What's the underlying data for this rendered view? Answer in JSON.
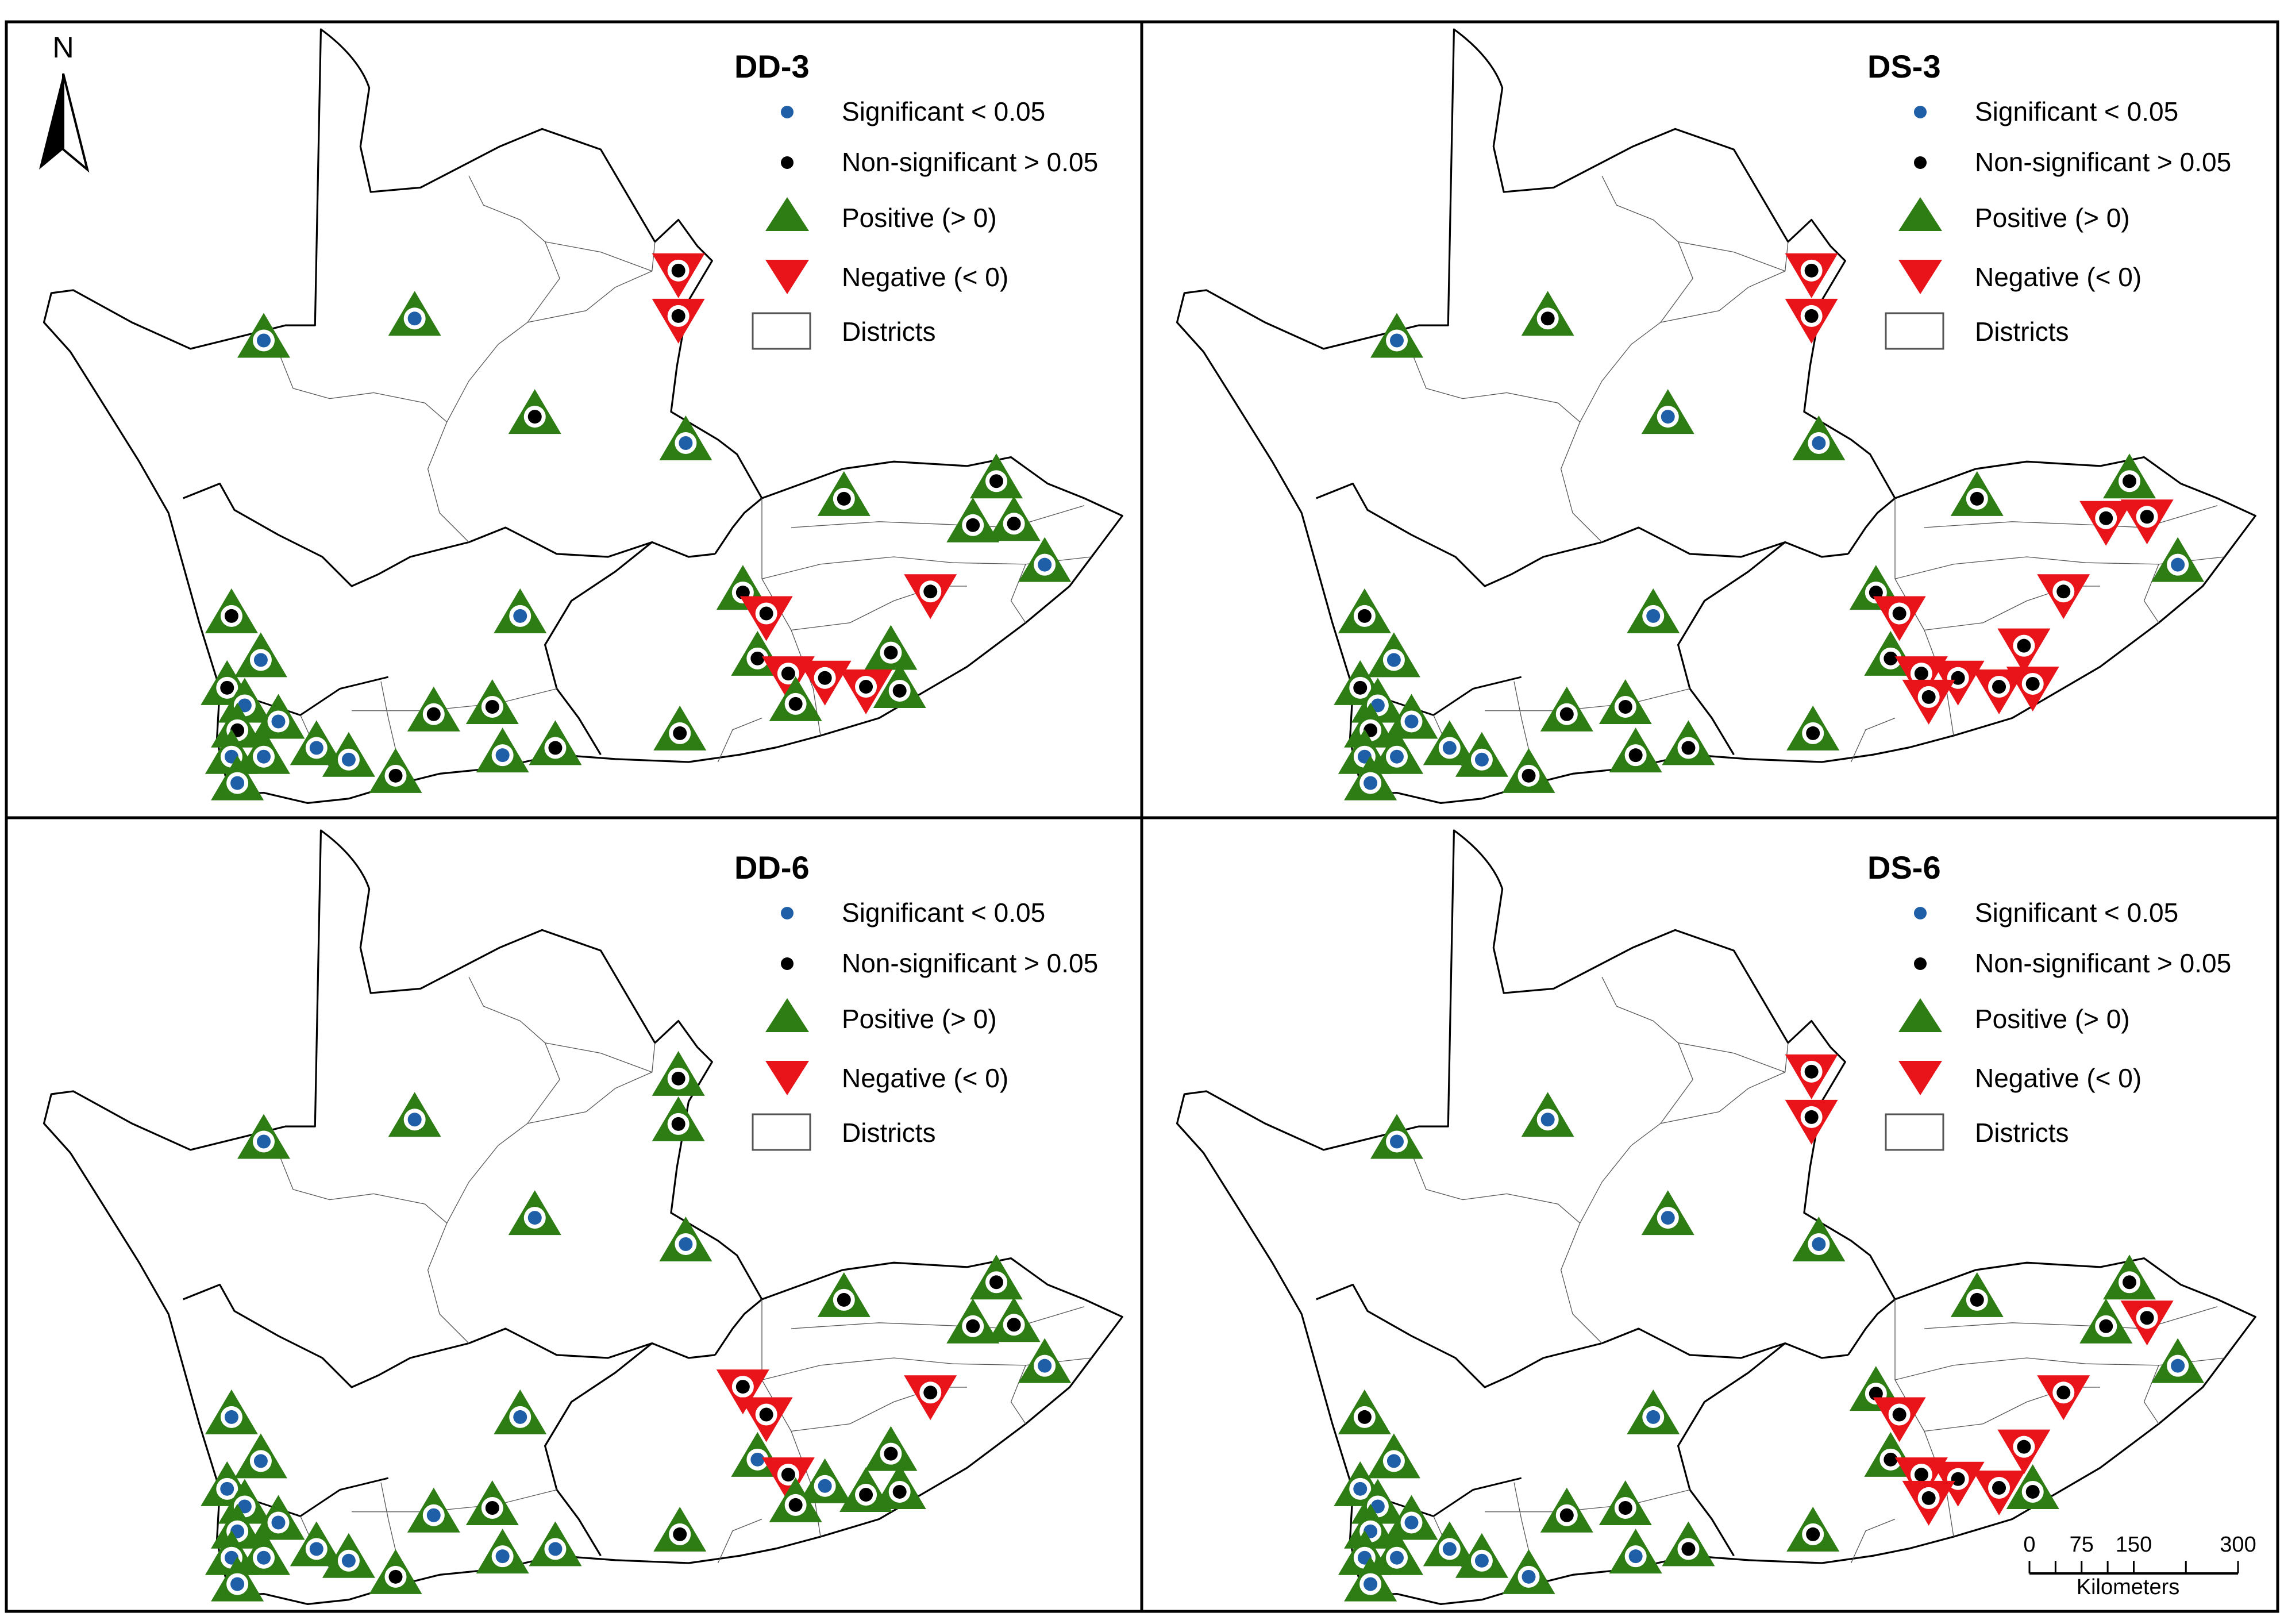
{
  "panels": [
    {
      "title": "DD-3",
      "stations": [
        {
          "lon": 180,
          "lat": 230,
          "trend": "pos",
          "sig": true
        },
        {
          "lon": 283,
          "lat": 215,
          "trend": "pos",
          "sig": true
        },
        {
          "lon": 365,
          "lat": 282,
          "trend": "pos",
          "sig": false
        },
        {
          "lon": 463,
          "lat": 187,
          "trend": "neg",
          "sig": false
        },
        {
          "lon": 463,
          "lat": 218,
          "trend": "neg",
          "sig": false
        },
        {
          "lon": 468,
          "lat": 300,
          "trend": "pos",
          "sig": true
        },
        {
          "lon": 576,
          "lat": 338,
          "trend": "pos",
          "sig": false
        },
        {
          "lon": 680,
          "lat": 326,
          "trend": "pos",
          "sig": false
        },
        {
          "lon": 664,
          "lat": 356,
          "trend": "pos",
          "sig": false
        },
        {
          "lon": 692,
          "lat": 355,
          "trend": "pos",
          "sig": false
        },
        {
          "lon": 713,
          "lat": 383,
          "trend": "pos",
          "sig": true
        },
        {
          "lon": 158,
          "lat": 418,
          "trend": "pos",
          "sig": false
        },
        {
          "lon": 178,
          "lat": 448,
          "trend": "pos",
          "sig": true
        },
        {
          "lon": 155,
          "lat": 467,
          "trend": "pos",
          "sig": false
        },
        {
          "lon": 167,
          "lat": 479,
          "trend": "pos",
          "sig": true
        },
        {
          "lon": 190,
          "lat": 490,
          "trend": "pos",
          "sig": true
        },
        {
          "lon": 162,
          "lat": 496,
          "trend": "pos",
          "sig": false
        },
        {
          "lon": 158,
          "lat": 514,
          "trend": "pos",
          "sig": true
        },
        {
          "lon": 180,
          "lat": 514,
          "trend": "pos",
          "sig": true
        },
        {
          "lon": 216,
          "lat": 508,
          "trend": "pos",
          "sig": true
        },
        {
          "lon": 238,
          "lat": 516,
          "trend": "pos",
          "sig": true
        },
        {
          "lon": 162,
          "lat": 532,
          "trend": "pos",
          "sig": true
        },
        {
          "lon": 270,
          "lat": 527,
          "trend": "pos",
          "sig": false
        },
        {
          "lon": 296,
          "lat": 485,
          "trend": "pos",
          "sig": false
        },
        {
          "lon": 336,
          "lat": 480,
          "trend": "pos",
          "sig": false
        },
        {
          "lon": 343,
          "lat": 513,
          "trend": "pos",
          "sig": true
        },
        {
          "lon": 379,
          "lat": 508,
          "trend": "pos",
          "sig": false
        },
        {
          "lon": 355,
          "lat": 418,
          "trend": "pos",
          "sig": true
        },
        {
          "lon": 464,
          "lat": 498,
          "trend": "pos",
          "sig": false
        },
        {
          "lon": 507,
          "lat": 402,
          "trend": "pos",
          "sig": false
        },
        {
          "lon": 523,
          "lat": 421,
          "trend": "neg",
          "sig": false
        },
        {
          "lon": 517,
          "lat": 447,
          "trend": "pos",
          "sig": false
        },
        {
          "lon": 538,
          "lat": 462,
          "trend": "neg",
          "sig": false
        },
        {
          "lon": 563,
          "lat": 465,
          "trend": "neg",
          "sig": false
        },
        {
          "lon": 543,
          "lat": 478,
          "trend": "pos",
          "sig": false
        },
        {
          "lon": 608,
          "lat": 443,
          "trend": "pos",
          "sig": false
        },
        {
          "lon": 591,
          "lat": 471,
          "trend": "neg",
          "sig": false
        },
        {
          "lon": 614,
          "lat": 469,
          "trend": "pos",
          "sig": false
        },
        {
          "lon": 635,
          "lat": 406,
          "trend": "neg",
          "sig": false
        }
      ]
    },
    {
      "title": "DS-3",
      "stations": [
        {
          "lon": 180,
          "lat": 230,
          "trend": "pos",
          "sig": true
        },
        {
          "lon": 283,
          "lat": 215,
          "trend": "pos",
          "sig": false
        },
        {
          "lon": 365,
          "lat": 282,
          "trend": "pos",
          "sig": true
        },
        {
          "lon": 463,
          "lat": 187,
          "trend": "neg",
          "sig": false
        },
        {
          "lon": 463,
          "lat": 218,
          "trend": "neg",
          "sig": false
        },
        {
          "lon": 468,
          "lat": 300,
          "trend": "pos",
          "sig": true
        },
        {
          "lon": 576,
          "lat": 338,
          "trend": "pos",
          "sig": false
        },
        {
          "lon": 680,
          "lat": 326,
          "trend": "pos",
          "sig": false
        },
        {
          "lon": 664,
          "lat": 356,
          "trend": "neg",
          "sig": false
        },
        {
          "lon": 692,
          "lat": 355,
          "trend": "neg",
          "sig": false
        },
        {
          "lon": 713,
          "lat": 383,
          "trend": "pos",
          "sig": true
        },
        {
          "lon": 158,
          "lat": 418,
          "trend": "pos",
          "sig": false
        },
        {
          "lon": 178,
          "lat": 448,
          "trend": "pos",
          "sig": true
        },
        {
          "lon": 155,
          "lat": 467,
          "trend": "pos",
          "sig": false
        },
        {
          "lon": 167,
          "lat": 479,
          "trend": "pos",
          "sig": true
        },
        {
          "lon": 190,
          "lat": 490,
          "trend": "pos",
          "sig": true
        },
        {
          "lon": 162,
          "lat": 496,
          "trend": "pos",
          "sig": false
        },
        {
          "lon": 158,
          "lat": 514,
          "trend": "pos",
          "sig": true
        },
        {
          "lon": 180,
          "lat": 514,
          "trend": "pos",
          "sig": true
        },
        {
          "lon": 216,
          "lat": 508,
          "trend": "pos",
          "sig": true
        },
        {
          "lon": 238,
          "lat": 516,
          "trend": "pos",
          "sig": true
        },
        {
          "lon": 162,
          "lat": 532,
          "trend": "pos",
          "sig": true
        },
        {
          "lon": 270,
          "lat": 527,
          "trend": "pos",
          "sig": false
        },
        {
          "lon": 296,
          "lat": 485,
          "trend": "pos",
          "sig": false
        },
        {
          "lon": 336,
          "lat": 480,
          "trend": "pos",
          "sig": false
        },
        {
          "lon": 343,
          "lat": 513,
          "trend": "pos",
          "sig": false
        },
        {
          "lon": 379,
          "lat": 508,
          "trend": "pos",
          "sig": false
        },
        {
          "lon": 355,
          "lat": 418,
          "trend": "pos",
          "sig": true
        },
        {
          "lon": 464,
          "lat": 498,
          "trend": "pos",
          "sig": false
        },
        {
          "lon": 507,
          "lat": 402,
          "trend": "pos",
          "sig": false
        },
        {
          "lon": 523,
          "lat": 421,
          "trend": "neg",
          "sig": false
        },
        {
          "lon": 517,
          "lat": 447,
          "trend": "pos",
          "sig": false
        },
        {
          "lon": 538,
          "lat": 462,
          "trend": "neg",
          "sig": false
        },
        {
          "lon": 563,
          "lat": 465,
          "trend": "neg",
          "sig": false
        },
        {
          "lon": 543,
          "lat": 478,
          "trend": "neg",
          "sig": false
        },
        {
          "lon": 608,
          "lat": 443,
          "trend": "neg",
          "sig": false
        },
        {
          "lon": 591,
          "lat": 471,
          "trend": "neg",
          "sig": false
        },
        {
          "lon": 614,
          "lat": 469,
          "trend": "neg",
          "sig": false
        },
        {
          "lon": 635,
          "lat": 406,
          "trend": "neg",
          "sig": false
        }
      ]
    },
    {
      "title": "DD-6",
      "stations": [
        {
          "lon": 180,
          "lat": 230,
          "trend": "pos",
          "sig": true
        },
        {
          "lon": 283,
          "lat": 215,
          "trend": "pos",
          "sig": true
        },
        {
          "lon": 365,
          "lat": 282,
          "trend": "pos",
          "sig": true
        },
        {
          "lon": 463,
          "lat": 187,
          "trend": "pos",
          "sig": false
        },
        {
          "lon": 463,
          "lat": 218,
          "trend": "pos",
          "sig": false
        },
        {
          "lon": 468,
          "lat": 300,
          "trend": "pos",
          "sig": true
        },
        {
          "lon": 576,
          "lat": 338,
          "trend": "pos",
          "sig": false
        },
        {
          "lon": 680,
          "lat": 326,
          "trend": "pos",
          "sig": false
        },
        {
          "lon": 664,
          "lat": 356,
          "trend": "pos",
          "sig": false
        },
        {
          "lon": 692,
          "lat": 355,
          "trend": "pos",
          "sig": false
        },
        {
          "lon": 713,
          "lat": 383,
          "trend": "pos",
          "sig": true
        },
        {
          "lon": 158,
          "lat": 418,
          "trend": "pos",
          "sig": true
        },
        {
          "lon": 178,
          "lat": 448,
          "trend": "pos",
          "sig": true
        },
        {
          "lon": 155,
          "lat": 467,
          "trend": "pos",
          "sig": true
        },
        {
          "lon": 167,
          "lat": 479,
          "trend": "pos",
          "sig": true
        },
        {
          "lon": 190,
          "lat": 490,
          "trend": "pos",
          "sig": true
        },
        {
          "lon": 162,
          "lat": 496,
          "trend": "pos",
          "sig": true
        },
        {
          "lon": 158,
          "lat": 514,
          "trend": "pos",
          "sig": true
        },
        {
          "lon": 180,
          "lat": 514,
          "trend": "pos",
          "sig": true
        },
        {
          "lon": 216,
          "lat": 508,
          "trend": "pos",
          "sig": true
        },
        {
          "lon": 238,
          "lat": 516,
          "trend": "pos",
          "sig": true
        },
        {
          "lon": 162,
          "lat": 532,
          "trend": "pos",
          "sig": true
        },
        {
          "lon": 270,
          "lat": 527,
          "trend": "pos",
          "sig": false
        },
        {
          "lon": 296,
          "lat": 485,
          "trend": "pos",
          "sig": true
        },
        {
          "lon": 336,
          "lat": 480,
          "trend": "pos",
          "sig": false
        },
        {
          "lon": 343,
          "lat": 513,
          "trend": "pos",
          "sig": true
        },
        {
          "lon": 379,
          "lat": 508,
          "trend": "pos",
          "sig": true
        },
        {
          "lon": 355,
          "lat": 418,
          "trend": "pos",
          "sig": true
        },
        {
          "lon": 464,
          "lat": 498,
          "trend": "pos",
          "sig": false
        },
        {
          "lon": 507,
          "lat": 402,
          "trend": "neg",
          "sig": false
        },
        {
          "lon": 523,
          "lat": 421,
          "trend": "neg",
          "sig": false
        },
        {
          "lon": 517,
          "lat": 447,
          "trend": "pos",
          "sig": true
        },
        {
          "lon": 538,
          "lat": 462,
          "trend": "neg",
          "sig": false
        },
        {
          "lon": 563,
          "lat": 465,
          "trend": "pos",
          "sig": true
        },
        {
          "lon": 543,
          "lat": 478,
          "trend": "pos",
          "sig": false
        },
        {
          "lon": 608,
          "lat": 443,
          "trend": "pos",
          "sig": false
        },
        {
          "lon": 591,
          "lat": 471,
          "trend": "pos",
          "sig": false
        },
        {
          "lon": 614,
          "lat": 469,
          "trend": "pos",
          "sig": false
        },
        {
          "lon": 635,
          "lat": 406,
          "trend": "neg",
          "sig": false
        }
      ]
    },
    {
      "title": "DS-6",
      "stations": [
        {
          "lon": 180,
          "lat": 230,
          "trend": "pos",
          "sig": true
        },
        {
          "lon": 283,
          "lat": 215,
          "trend": "pos",
          "sig": true
        },
        {
          "lon": 365,
          "lat": 282,
          "trend": "pos",
          "sig": true
        },
        {
          "lon": 463,
          "lat": 187,
          "trend": "neg",
          "sig": false
        },
        {
          "lon": 463,
          "lat": 218,
          "trend": "neg",
          "sig": false
        },
        {
          "lon": 468,
          "lat": 300,
          "trend": "pos",
          "sig": true
        },
        {
          "lon": 576,
          "lat": 338,
          "trend": "pos",
          "sig": false
        },
        {
          "lon": 680,
          "lat": 326,
          "trend": "pos",
          "sig": false
        },
        {
          "lon": 664,
          "lat": 356,
          "trend": "pos",
          "sig": false
        },
        {
          "lon": 692,
          "lat": 355,
          "trend": "neg",
          "sig": false
        },
        {
          "lon": 713,
          "lat": 383,
          "trend": "pos",
          "sig": true
        },
        {
          "lon": 158,
          "lat": 418,
          "trend": "pos",
          "sig": false
        },
        {
          "lon": 178,
          "lat": 448,
          "trend": "pos",
          "sig": true
        },
        {
          "lon": 155,
          "lat": 467,
          "trend": "pos",
          "sig": true
        },
        {
          "lon": 167,
          "lat": 479,
          "trend": "pos",
          "sig": true
        },
        {
          "lon": 190,
          "lat": 490,
          "trend": "pos",
          "sig": true
        },
        {
          "lon": 162,
          "lat": 496,
          "trend": "pos",
          "sig": true
        },
        {
          "lon": 158,
          "lat": 514,
          "trend": "pos",
          "sig": true
        },
        {
          "lon": 180,
          "lat": 514,
          "trend": "pos",
          "sig": true
        },
        {
          "lon": 216,
          "lat": 508,
          "trend": "pos",
          "sig": true
        },
        {
          "lon": 238,
          "lat": 516,
          "trend": "pos",
          "sig": true
        },
        {
          "lon": 162,
          "lat": 532,
          "trend": "pos",
          "sig": true
        },
        {
          "lon": 270,
          "lat": 527,
          "trend": "pos",
          "sig": true
        },
        {
          "lon": 296,
          "lat": 485,
          "trend": "pos",
          "sig": false
        },
        {
          "lon": 336,
          "lat": 480,
          "trend": "pos",
          "sig": false
        },
        {
          "lon": 343,
          "lat": 513,
          "trend": "pos",
          "sig": true
        },
        {
          "lon": 379,
          "lat": 508,
          "trend": "pos",
          "sig": false
        },
        {
          "lon": 355,
          "lat": 418,
          "trend": "pos",
          "sig": true
        },
        {
          "lon": 464,
          "lat": 498,
          "trend": "pos",
          "sig": false
        },
        {
          "lon": 507,
          "lat": 402,
          "trend": "pos",
          "sig": false
        },
        {
          "lon": 523,
          "lat": 421,
          "trend": "neg",
          "sig": false
        },
        {
          "lon": 517,
          "lat": 447,
          "trend": "pos",
          "sig": false
        },
        {
          "lon": 538,
          "lat": 462,
          "trend": "neg",
          "sig": false
        },
        {
          "lon": 563,
          "lat": 465,
          "trend": "neg",
          "sig": false
        },
        {
          "lon": 543,
          "lat": 478,
          "trend": "neg",
          "sig": false
        },
        {
          "lon": 608,
          "lat": 443,
          "trend": "neg",
          "sig": false
        },
        {
          "lon": 591,
          "lat": 471,
          "trend": "neg",
          "sig": false
        },
        {
          "lon": 614,
          "lat": 469,
          "trend": "pos",
          "sig": false
        },
        {
          "lon": 635,
          "lat": 406,
          "trend": "neg",
          "sig": false
        }
      ]
    }
  ],
  "legend": {
    "significant": "Significant < 0.05",
    "nonsignificant": "Non-significant > 0.05",
    "positive": "Positive (> 0)",
    "negative": "Negative (< 0)",
    "districts": "Districts"
  },
  "north_arrow": {
    "label": "N",
    "icon": "north-arrow-icon"
  },
  "scale_bar": {
    "ticks": [
      "0",
      "75",
      "150",
      "300"
    ],
    "tick_km": [
      0,
      75,
      150,
      300
    ],
    "minor_km": [
      0,
      37.5,
      75,
      112.5,
      150,
      225,
      300
    ],
    "unit": "Kilometers"
  },
  "colors": {
    "positive": "#2e7d14",
    "negative": "#e8141a",
    "significant": "#1f5fa8",
    "nonsignificant": "#000000",
    "boundary": "#000000",
    "district": "#444444"
  }
}
